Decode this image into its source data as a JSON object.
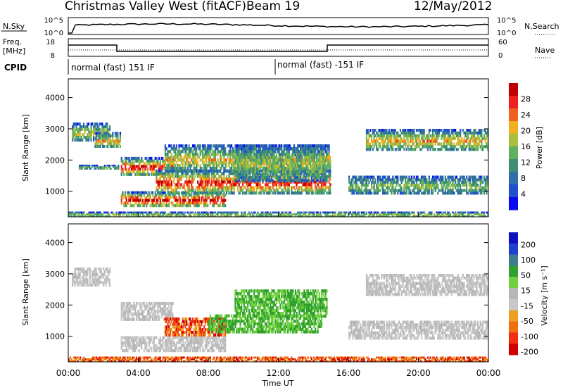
{
  "header": {
    "station": "Christmas Valley West (fitACF)",
    "beam": "Beam 19",
    "date": "12/May/2012"
  },
  "strip_labels": {
    "nsky": "N.Sky",
    "nsearch": "N.Search",
    "freq_line1": "Freq.",
    "freq_line2": "[MHz]",
    "nave": "Nave",
    "cpid": "CPID",
    "nsky_ticks": [
      "10^5",
      "10^0"
    ],
    "nsearch_ticks": [
      "10^5",
      "10^0"
    ],
    "freq_ticks": [
      "18",
      "8"
    ],
    "nave_ticks": [
      "60",
      "0"
    ]
  },
  "cpid_segments": [
    {
      "label": "normal (fast) 151 IF",
      "start_hour": 0.0
    },
    {
      "label": "normal (fast) -151 IF",
      "start_hour": 12.0
    }
  ],
  "colors": {
    "power_scale": [
      "#0a0af0",
      "#2050d0",
      "#2f6ea8",
      "#3f9070",
      "#60b060",
      "#a8c040",
      "#f0b020",
      "#f06020",
      "#f02020",
      "#c00000"
    ],
    "velocity_scale": [
      "#1010c0",
      "#2040d0",
      "#3f7a8f",
      "#30a030",
      "#70d040",
      "#b8b8b8",
      "#c8c8c8",
      "#f0a020",
      "#f07010",
      "#f03010",
      "#d00000"
    ]
  },
  "chart_data": [
    {
      "type": "heatmap",
      "panel": "power",
      "xlabel": "",
      "ylabel": "Slant Range [km]",
      "colorbar_label": "Power [dB]",
      "colorbar_ticks": [
        "28",
        "24",
        "20",
        "16",
        "12",
        "8",
        "4"
      ],
      "yticks": [
        "4000",
        "3000",
        "2000",
        "1000"
      ],
      "ylim": [
        180,
        4600
      ],
      "xlim": [
        0,
        24
      ],
      "echo_bands": [
        {
          "t0": 0.2,
          "t1": 2.4,
          "r0": 2600,
          "r1": 3200,
          "peak": 0.45
        },
        {
          "t0": 1.5,
          "t1": 3.0,
          "r0": 2400,
          "r1": 2900,
          "peak": 0.5
        },
        {
          "t0": 0.6,
          "t1": 2.9,
          "r0": 1700,
          "r1": 1850,
          "peak": 0.35
        },
        {
          "t0": 3.0,
          "t1": 6.0,
          "r0": 1500,
          "r1": 2100,
          "peak": 0.85
        },
        {
          "t0": 3.0,
          "t1": 9.0,
          "r0": 500,
          "r1": 1000,
          "peak": 0.9
        },
        {
          "t0": 5.0,
          "t1": 15.0,
          "r0": 900,
          "r1": 1700,
          "peak": 0.8
        },
        {
          "t0": 5.5,
          "t1": 15.0,
          "r0": 1600,
          "r1": 2500,
          "peak": 0.5
        },
        {
          "t0": 9.5,
          "t1": 14.8,
          "r0": 1300,
          "r1": 2500,
          "peak": 0.4
        },
        {
          "t0": 16.0,
          "t1": 24.0,
          "r0": 900,
          "r1": 1500,
          "peak": 0.35
        },
        {
          "t0": 17.0,
          "t1": 24.0,
          "r0": 2300,
          "r1": 3000,
          "peak": 0.55
        },
        {
          "t0": 0.0,
          "t1": 24.0,
          "r0": 180,
          "r1": 350,
          "peak": 0.45
        }
      ]
    },
    {
      "type": "heatmap",
      "panel": "velocity",
      "xlabel": "Time UT",
      "ylabel": "Slant Range [km]",
      "colorbar_label": "Velocity [m s⁻¹]",
      "colorbar_ticks": [
        "200",
        "100",
        "50",
        "15",
        "-15",
        "-50",
        "-100",
        "-200"
      ],
      "xticks": [
        "00:00",
        "04:00",
        "08:00",
        "12:00",
        "16:00",
        "20:00",
        "00:00"
      ],
      "yticks": [
        "4000",
        "3000",
        "2000",
        "1000"
      ],
      "ylim": [
        180,
        4600
      ],
      "xlim": [
        0,
        24
      ],
      "echo_bands": [
        {
          "t0": 0.2,
          "t1": 2.4,
          "r0": 2600,
          "r1": 3200,
          "vel": "ground"
        },
        {
          "t0": 3.0,
          "t1": 6.0,
          "r0": 1500,
          "r1": 2100,
          "vel": "ground"
        },
        {
          "t0": 3.0,
          "t1": 9.0,
          "r0": 500,
          "r1": 1000,
          "vel": "ground"
        },
        {
          "t0": 5.5,
          "t1": 9.0,
          "r0": 1000,
          "r1": 1600,
          "vel": "away"
        },
        {
          "t0": 8.0,
          "t1": 14.5,
          "r0": 1100,
          "r1": 1700,
          "vel": "toward"
        },
        {
          "t0": 9.5,
          "t1": 14.8,
          "r0": 1600,
          "r1": 2500,
          "vel": "toward"
        },
        {
          "t0": 16.0,
          "t1": 24.0,
          "r0": 900,
          "r1": 1500,
          "vel": "ground"
        },
        {
          "t0": 17.0,
          "t1": 24.0,
          "r0": 2300,
          "r1": 3000,
          "vel": "ground"
        },
        {
          "t0": 0.0,
          "t1": 24.0,
          "r0": 180,
          "r1": 350,
          "vel": "away"
        }
      ]
    }
  ]
}
